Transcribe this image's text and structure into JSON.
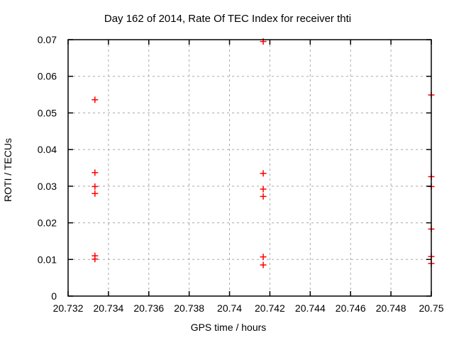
{
  "chart_data": {
    "type": "scatter",
    "title": "Day 162 of 2014, Rate Of TEC Index for receiver thti",
    "xlabel": "GPS time / hours",
    "ylabel": "ROTI / TECUs",
    "xlim": [
      20.732,
      20.75
    ],
    "ylim": [
      0,
      0.07
    ],
    "xticks": {
      "values": [
        20.732,
        20.734,
        20.736,
        20.738,
        20.74,
        20.742,
        20.744,
        20.746,
        20.748,
        20.75
      ],
      "labels": [
        "20.732",
        "20.734",
        "20.736",
        "20.738",
        "20.74",
        "20.742",
        "20.744",
        "20.746",
        "20.748",
        "20.75"
      ]
    },
    "yticks": {
      "values": [
        0,
        0.01,
        0.02,
        0.03,
        0.04,
        0.05,
        0.06,
        0.07
      ],
      "labels": [
        "0",
        "0.01",
        "0.02",
        "0.03",
        "0.04",
        "0.05",
        "0.06",
        "0.07"
      ]
    },
    "grid": true,
    "legend": "none",
    "marker": "plus",
    "colors": {
      "marker": "#ff0000",
      "grid": "#a8a8a8",
      "axis": "#000000",
      "text": "#000000",
      "background": "#ffffff"
    },
    "series": [
      {
        "name": "ROTI",
        "points": [
          [
            20.73333,
            0.0536
          ],
          [
            20.73333,
            0.0337
          ],
          [
            20.73333,
            0.0299
          ],
          [
            20.73333,
            0.028
          ],
          [
            20.73333,
            0.011
          ],
          [
            20.73333,
            0.0101
          ],
          [
            20.74167,
            0.0695
          ],
          [
            20.74167,
            0.0335
          ],
          [
            20.74167,
            0.0292
          ],
          [
            20.74167,
            0.0272
          ],
          [
            20.74167,
            0.0107
          ],
          [
            20.74167,
            0.0085
          ],
          [
            20.75,
            0.0549
          ],
          [
            20.75,
            0.0326
          ],
          [
            20.75,
            0.0299
          ],
          [
            20.75,
            0.0183
          ],
          [
            20.75,
            0.0108
          ],
          [
            20.75,
            0.0089
          ]
        ]
      }
    ]
  }
}
